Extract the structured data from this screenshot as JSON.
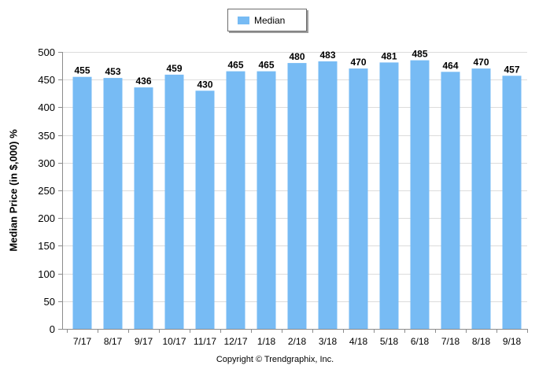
{
  "chart_data": {
    "type": "bar",
    "ylabel": "Median Price (in $,000) %",
    "ylim": [
      0,
      500
    ],
    "yticks": [
      0,
      50,
      100,
      150,
      200,
      250,
      300,
      350,
      400,
      450,
      500
    ],
    "grid": true,
    "legend_position": "top-center",
    "categories": [
      "7/17",
      "8/17",
      "9/17",
      "10/17",
      "11/17",
      "12/17",
      "1/18",
      "2/18",
      "3/18",
      "4/18",
      "5/18",
      "6/18",
      "7/18",
      "8/18",
      "9/18"
    ],
    "series": [
      {
        "name": "Median",
        "color": "#77bbf4",
        "values": [
          455,
          453,
          436,
          459,
          430,
          465,
          465,
          480,
          483,
          470,
          481,
          485,
          464,
          470,
          457
        ]
      }
    ]
  },
  "footer": {
    "copyright": "Copyright © Trendgraphix, Inc."
  }
}
